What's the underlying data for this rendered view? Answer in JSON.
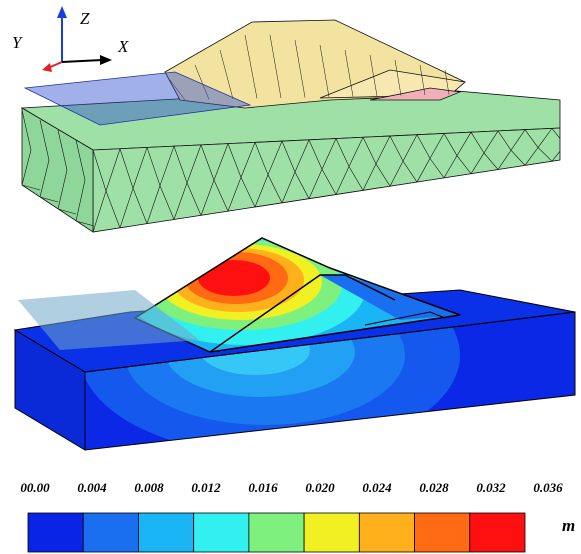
{
  "axes": {
    "x": "X",
    "y": "Y",
    "z": "Z"
  },
  "colorbar": {
    "ticks": [
      {
        "value": 0,
        "label": "00.00"
      },
      0.004,
      0.008,
      0.012,
      0.016,
      {
        "value": 0.02,
        "label": "0.020"
      },
      0.024,
      0.028,
      0.032,
      0.036
    ],
    "colors": [
      "#0a24e6",
      "#1a6ef0",
      "#19b5f5",
      "#33f0f0",
      "#7ef07e",
      "#f0f022",
      "#ffb01a",
      "#ff6a12",
      "#ff1010"
    ],
    "unit": "m"
  }
}
